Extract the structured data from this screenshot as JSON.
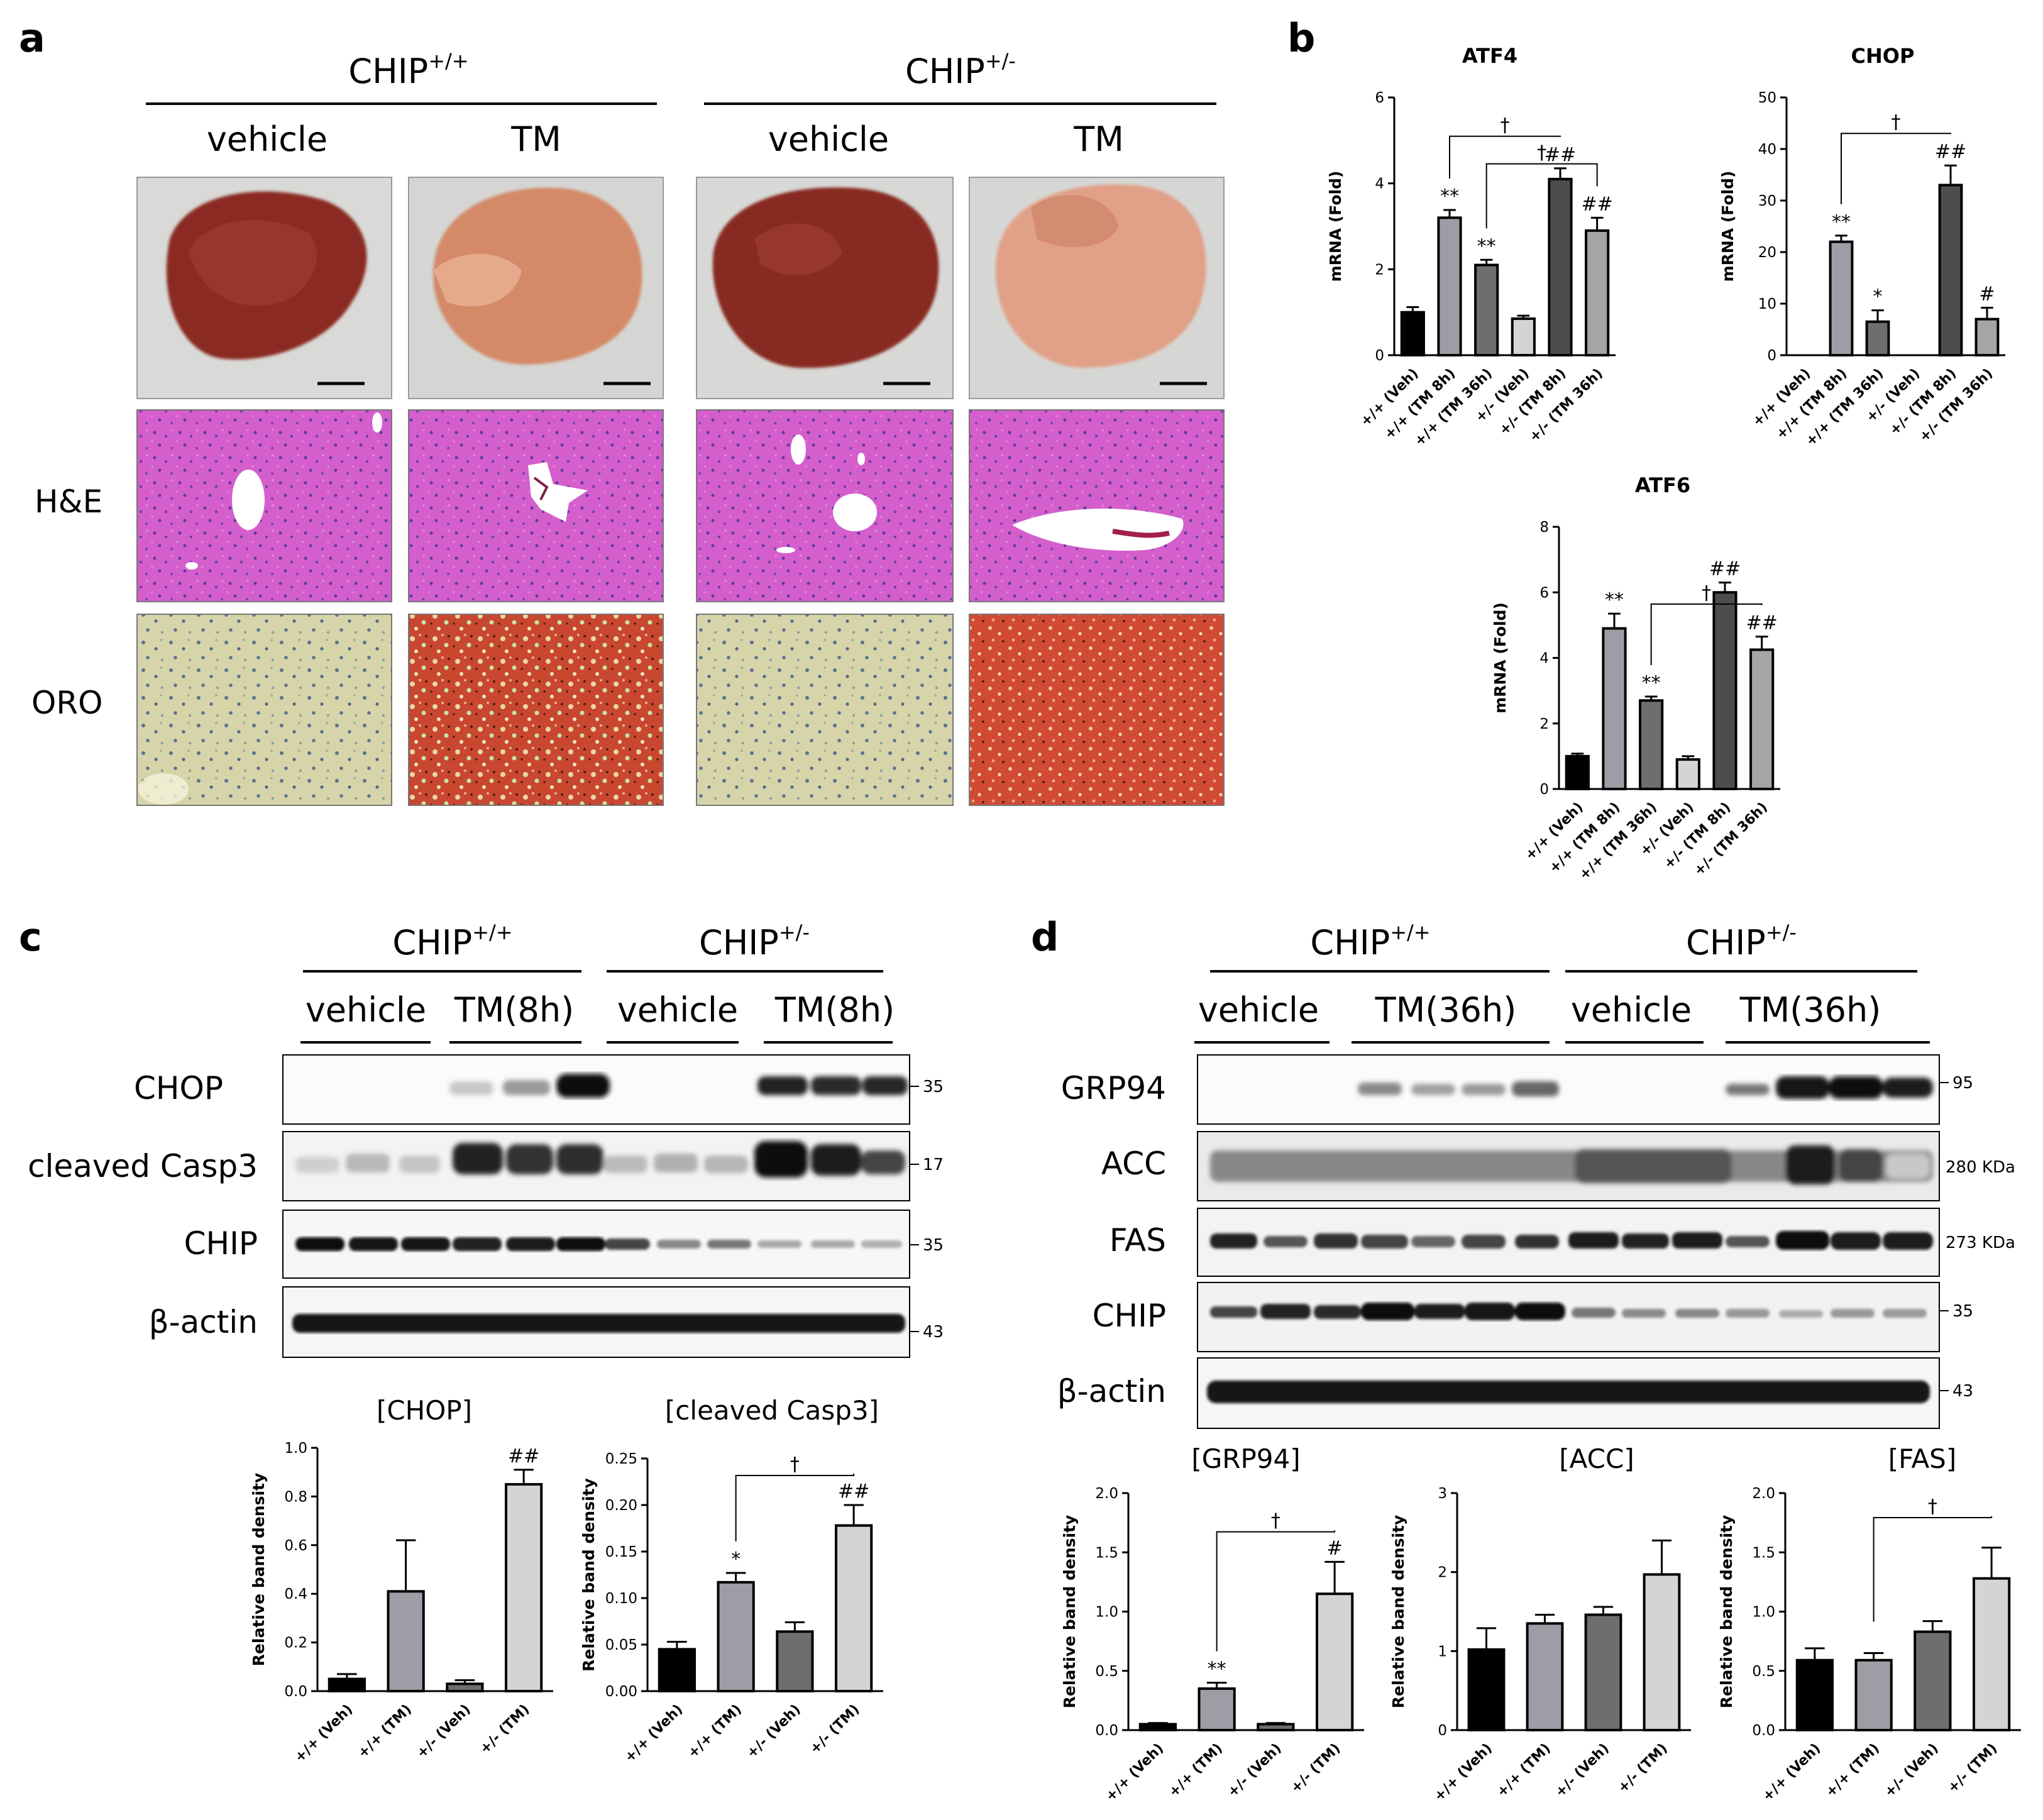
{
  "panel_a": {
    "label": "a",
    "groups": [
      {
        "name": "CHIP",
        "sup": "+/+"
      },
      {
        "name": "CHIP",
        "sup": "+/-"
      }
    ],
    "conditions": [
      "vehicle",
      "TM",
      "vehicle",
      "TM"
    ],
    "rows": [
      "H&E",
      "ORO"
    ],
    "colors": {
      "liver_dark": "#8e2f26",
      "liver_pale": "#d88f6d",
      "he_bg": "#d666cf",
      "oro_bg": "#d9d6a8",
      "oro_red": "#c93a27"
    }
  },
  "panel_b": {
    "label": "b"
  },
  "panel_c": {
    "label": "c",
    "groups": [
      {
        "name": "CHIP",
        "sup": "+/+"
      },
      {
        "name": "CHIP",
        "sup": "+/-"
      }
    ],
    "conditions": [
      "vehicle",
      "TM(8h)",
      "vehicle",
      "TM(8h)"
    ],
    "blots": [
      {
        "name": "CHOP",
        "mw": "35"
      },
      {
        "name": "cleaved Casp3",
        "mw": "17"
      },
      {
        "name": "CHIP",
        "mw": "35"
      },
      {
        "name": "β-actin",
        "mw": "43"
      }
    ]
  },
  "panel_d": {
    "label": "d",
    "groups": [
      {
        "name": "CHIP",
        "sup": "+/+"
      },
      {
        "name": "CHIP",
        "sup": "+/-"
      }
    ],
    "conditions": [
      "vehicle",
      "TM(36h)",
      "vehicle",
      "TM(36h)"
    ],
    "blots": [
      {
        "name": "GRP94",
        "mw": "95"
      },
      {
        "name": "ACC",
        "mw": "280 KDa"
      },
      {
        "name": "FAS",
        "mw": "273 KDa"
      },
      {
        "name": "CHIP",
        "mw": "35"
      },
      {
        "name": "β-actin",
        "mw": "43"
      }
    ]
  },
  "chart_data": [
    {
      "id": "ATF4",
      "panel": "b",
      "type": "bar",
      "title": "ATF4",
      "ylabel": "mRNA (Fold)",
      "ylim": [
        0,
        6
      ],
      "yticks": [
        "0",
        "2",
        "4",
        "6"
      ],
      "categories": [
        "+/+ (Veh)",
        "+/+ (TM 8h)",
        "+/+ (TM 36h)",
        "+/- (Veh)",
        "+/- (TM 8h)",
        "+/- (TM 36h)"
      ],
      "values": [
        1.0,
        3.2,
        2.1,
        0.85,
        4.1,
        2.9
      ],
      "errors": [
        0.12,
        0.18,
        0.12,
        0.07,
        0.25,
        0.3
      ],
      "colors": [
        "#000000",
        "#9d9da6",
        "#6e6e6e",
        "#d4d4d4",
        "#4d4d4d",
        "#a5a5a5"
      ],
      "marks": [
        "",
        "**",
        "**",
        "",
        "##",
        "##"
      ],
      "brackets": [
        {
          "from": 1,
          "to": 4,
          "label": "†"
        },
        {
          "from": 2,
          "to": 5,
          "label": "†"
        }
      ]
    },
    {
      "id": "CHOP_mRNA",
      "panel": "b",
      "type": "bar",
      "title": "CHOP",
      "ylabel": "mRNA (Fold)",
      "ylim": [
        0,
        50
      ],
      "yticks": [
        "0",
        "10",
        "20",
        "30",
        "40",
        "50"
      ],
      "categories": [
        "+/+ (Veh)",
        "+/+ (TM 8h)",
        "+/+ (TM 36h)",
        "+/- (Veh)",
        "+/- (TM 8h)",
        "+/- (TM 36h)"
      ],
      "values": [
        0,
        22,
        6.5,
        0,
        33,
        7
      ],
      "errors": [
        0,
        1.2,
        2.2,
        0,
        3.8,
        2.2
      ],
      "colors": [
        "#000000",
        "#9d9da6",
        "#6e6e6e",
        "#d4d4d4",
        "#4d4d4d",
        "#a5a5a5"
      ],
      "marks": [
        "",
        "**",
        "*",
        "",
        "##",
        "#"
      ],
      "brackets": [
        {
          "from": 1,
          "to": 4,
          "label": "†"
        }
      ]
    },
    {
      "id": "ATF6",
      "panel": "b",
      "type": "bar",
      "title": "ATF6",
      "ylabel": "mRNA (Fold)",
      "ylim": [
        0,
        8
      ],
      "yticks": [
        "0",
        "2",
        "4",
        "6",
        "8"
      ],
      "categories": [
        "+/+ (Veh)",
        "+/+ (TM 8h)",
        "+/+ (TM 36h)",
        "+/- (Veh)",
        "+/- (TM 8h)",
        "+/- (TM 36h)"
      ],
      "values": [
        1.0,
        4.9,
        2.7,
        0.9,
        6.0,
        4.25
      ],
      "errors": [
        0.08,
        0.45,
        0.12,
        0.1,
        0.3,
        0.4
      ],
      "colors": [
        "#000000",
        "#9d9da6",
        "#6e6e6e",
        "#d4d4d4",
        "#4d4d4d",
        "#a5a5a5"
      ],
      "marks": [
        "",
        "**",
        "**",
        "",
        "##",
        "##"
      ],
      "brackets": [
        {
          "from": 2,
          "to": 5,
          "label": "†"
        }
      ]
    },
    {
      "id": "CHOP_band",
      "panel": "c",
      "type": "bar",
      "title": "[CHOP]",
      "ylabel": "Relative band density",
      "ylim": [
        0,
        1.0
      ],
      "yticks": [
        "0.0",
        "0.2",
        "0.4",
        "0.6",
        "0.8",
        "1.0"
      ],
      "categories": [
        "+/+ (Veh)",
        "+/+ (TM)",
        "+/- (Veh)",
        "+/- (TM)"
      ],
      "values": [
        0.05,
        0.41,
        0.03,
        0.85
      ],
      "errors": [
        0.02,
        0.21,
        0.015,
        0.06
      ],
      "colors": [
        "#000000",
        "#9d9da6",
        "#6e6e6e",
        "#d4d4d4"
      ],
      "marks": [
        "",
        "",
        "",
        "##"
      ],
      "brackets": []
    },
    {
      "id": "Casp3_band",
      "panel": "c",
      "type": "bar",
      "title": "[cleaved Casp3]",
      "ylabel": "Relative band density",
      "ylim": [
        0,
        0.25
      ],
      "yticks": [
        "0.00",
        "0.05",
        "0.10",
        "0.15",
        "0.20",
        "0.25"
      ],
      "categories": [
        "+/+ (Veh)",
        "+/+ (TM)",
        "+/- (Veh)",
        "+/- (TM)"
      ],
      "values": [
        0.045,
        0.117,
        0.064,
        0.178
      ],
      "errors": [
        0.008,
        0.01,
        0.01,
        0.022
      ],
      "colors": [
        "#000000",
        "#9d9da6",
        "#6e6e6e",
        "#d4d4d4"
      ],
      "marks": [
        "",
        "*",
        "",
        "##"
      ],
      "brackets": [
        {
          "from": 1,
          "to": 3,
          "label": "†"
        }
      ]
    },
    {
      "id": "GRP94_band",
      "panel": "d",
      "type": "bar",
      "title": "[GRP94]",
      "ylabel": "Relative band density",
      "ylim": [
        0,
        2.0
      ],
      "yticks": [
        "0.0",
        "0.5",
        "1.0",
        "1.5",
        "2.0"
      ],
      "categories": [
        "+/+ (Veh)",
        "+/+ (TM)",
        "+/- (Veh)",
        "+/- (TM)"
      ],
      "values": [
        0.05,
        0.35,
        0.05,
        1.15
      ],
      "errors": [
        0.01,
        0.05,
        0.01,
        0.27
      ],
      "colors": [
        "#000000",
        "#9d9da6",
        "#6e6e6e",
        "#d4d4d4"
      ],
      "marks": [
        "",
        "**",
        "",
        "#"
      ],
      "brackets": [
        {
          "from": 1,
          "to": 3,
          "label": "†"
        }
      ]
    },
    {
      "id": "ACC_band",
      "panel": "d",
      "type": "bar",
      "title": "[ACC]",
      "ylabel": "Relative band density",
      "ylim": [
        0,
        3
      ],
      "yticks": [
        "0",
        "1",
        "2",
        "3"
      ],
      "categories": [
        "+/+ (Veh)",
        "+/+ (TM)",
        "+/- (Veh)",
        "+/- (TM)"
      ],
      "values": [
        1.02,
        1.35,
        1.46,
        1.97
      ],
      "errors": [
        0.27,
        0.11,
        0.1,
        0.43
      ],
      "colors": [
        "#000000",
        "#9d9da6",
        "#6e6e6e",
        "#d4d4d4"
      ],
      "marks": [
        "",
        "",
        "",
        ""
      ],
      "brackets": []
    },
    {
      "id": "FAS_band",
      "panel": "d",
      "type": "bar",
      "title": "[FAS]",
      "ylabel": "Relative band density",
      "ylim": [
        0,
        2.0
      ],
      "yticks": [
        "0.0",
        "0.5",
        "1.0",
        "1.5",
        "2.0"
      ],
      "categories": [
        "+/+ (Veh)",
        "+/+ (TM)",
        "+/- (Veh)",
        "+/- (TM)"
      ],
      "values": [
        0.59,
        0.59,
        0.83,
        1.28
      ],
      "errors": [
        0.1,
        0.06,
        0.09,
        0.26
      ],
      "colors": [
        "#000000",
        "#9d9da6",
        "#6e6e6e",
        "#d4d4d4"
      ],
      "marks": [
        "",
        "",
        "",
        ""
      ],
      "brackets": [
        {
          "from": 1,
          "to": 3,
          "label": "†"
        }
      ]
    }
  ]
}
